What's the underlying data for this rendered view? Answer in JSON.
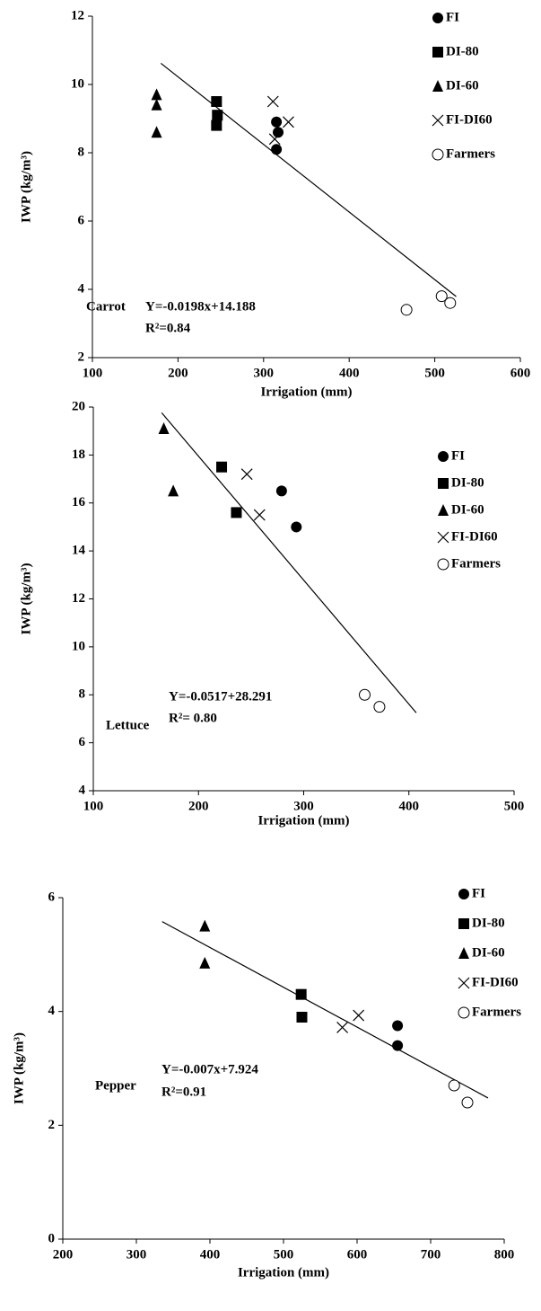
{
  "chart_data": [
    {
      "type": "scatter",
      "x_label": "Irrigation (mm)",
      "y_label": "IWP (kg/m³)",
      "annotations": [
        "Carrot",
        "Y=-0.0198x+14.188",
        "R²=0.84"
      ],
      "xlim": [
        100,
        600
      ],
      "xticks": [
        100,
        200,
        300,
        400,
        500,
        600
      ],
      "ylim": [
        2,
        12
      ],
      "yticks": [
        2,
        4,
        6,
        8,
        10,
        12
      ],
      "series": [
        {
          "name": "FI",
          "color": "#000000",
          "marker": "circle",
          "x": [
            315,
            317,
            315
          ],
          "values": [
            8.9,
            8.6,
            8.1
          ]
        },
        {
          "name": "DI-80",
          "color": "#000000",
          "marker": "square",
          "x": [
            245,
            246,
            245
          ],
          "values": [
            9.5,
            9.1,
            8.8
          ]
        },
        {
          "name": "DI-60",
          "color": "#000000",
          "marker": "triangle",
          "x": [
            175,
            175,
            175
          ],
          "values": [
            9.7,
            9.4,
            8.6
          ]
        },
        {
          "name": "FI-DI60",
          "color": "#000000",
          "marker": "x",
          "x": [
            311,
            313,
            329
          ],
          "values": [
            9.5,
            8.4,
            8.9
          ]
        },
        {
          "name": "Farmers",
          "color": "#000000",
          "marker": "open-circle",
          "x": [
            467,
            508,
            518
          ],
          "values": [
            3.4,
            3.8,
            3.6
          ]
        }
      ],
      "trendline": {
        "color": "#000000",
        "x": [
          180,
          525
        ],
        "values": [
          10.62,
          3.79
        ]
      }
    },
    {
      "type": "scatter",
      "x_label": "Irrigation (mm)",
      "y_label": "IWP (kg/m³)",
      "annotations": [
        "Lettuce",
        "Y=-0.0517+28.291",
        "R²= 0.80"
      ],
      "xlim": [
        100,
        500
      ],
      "xticks": [
        100,
        200,
        300,
        400,
        500
      ],
      "ylim": [
        4,
        20
      ],
      "yticks": [
        4,
        6,
        8,
        10,
        12,
        14,
        16,
        18,
        20
      ],
      "series": [
        {
          "name": "FI",
          "color": "#000000",
          "marker": "circle",
          "x": [
            279,
            293
          ],
          "values": [
            16.5,
            15
          ]
        },
        {
          "name": "DI-80",
          "color": "#000000",
          "marker": "square",
          "x": [
            222,
            236
          ],
          "values": [
            17.5,
            15.6
          ]
        },
        {
          "name": "DI-60",
          "color": "#000000",
          "marker": "triangle",
          "x": [
            167,
            176
          ],
          "values": [
            19.1,
            16.5
          ]
        },
        {
          "name": "FI-DI60",
          "color": "#000000",
          "marker": "x",
          "x": [
            246,
            258
          ],
          "values": [
            17.2,
            15.5
          ]
        },
        {
          "name": "Farmers",
          "color": "#000000",
          "marker": "open-circle",
          "x": [
            358,
            372
          ],
          "values": [
            8.0,
            7.5
          ]
        }
      ],
      "trendline": {
        "color": "#000000",
        "x": [
          165,
          407
        ],
        "values": [
          19.76,
          7.25
        ]
      }
    },
    {
      "type": "scatter",
      "x_label": "Irrigation (mm)",
      "y_label": "IWP (kg/m³)",
      "annotations": [
        "Pepper",
        "Y=-0.007x+7.924",
        "R²=0.91"
      ],
      "xlim": [
        200,
        800
      ],
      "xticks": [
        200,
        300,
        400,
        500,
        600,
        700,
        800
      ],
      "ylim": [
        0,
        6
      ],
      "yticks": [
        0,
        2,
        4,
        6
      ],
      "series": [
        {
          "name": "FI",
          "color": "#000000",
          "marker": "circle",
          "x": [
            655,
            655
          ],
          "values": [
            3.75,
            3.4
          ]
        },
        {
          "name": "DI-80",
          "color": "#000000",
          "marker": "square",
          "x": [
            524,
            525
          ],
          "values": [
            4.3,
            3.9
          ]
        },
        {
          "name": "DI-60",
          "color": "#000000",
          "marker": "triangle",
          "x": [
            393,
            393
          ],
          "values": [
            5.5,
            4.85
          ]
        },
        {
          "name": "FI-DI60",
          "color": "#000000",
          "marker": "x",
          "x": [
            580,
            602
          ],
          "values": [
            3.72,
            3.93
          ]
        },
        {
          "name": "Farmers",
          "color": "#000000",
          "marker": "open-circle",
          "x": [
            732,
            750
          ],
          "values": [
            2.7,
            2.4
          ]
        }
      ],
      "trendline": {
        "color": "#000000",
        "x": [
          335,
          778
        ],
        "values": [
          5.58,
          2.48
        ]
      }
    }
  ]
}
